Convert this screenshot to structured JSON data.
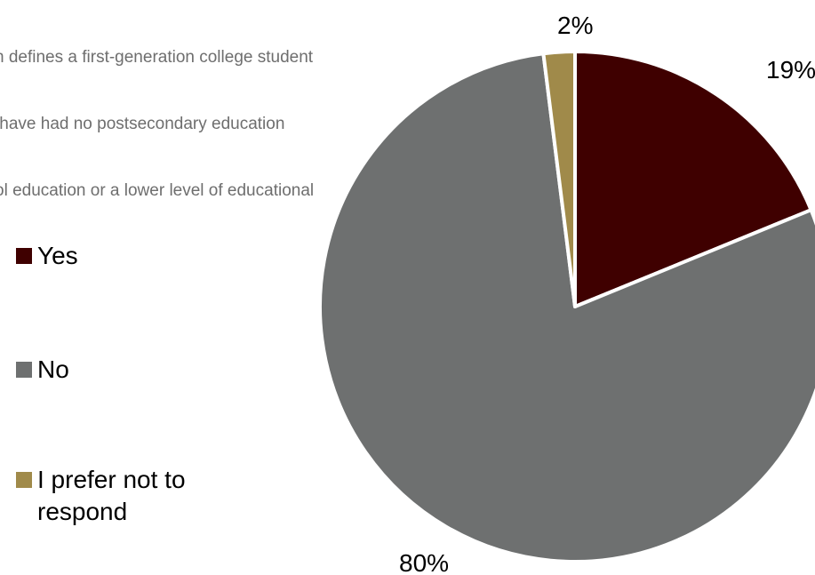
{
  "chart_data": {
    "type": "pie",
    "note_lines": [
      "n defines a first-generation college student",
      " have had no postsecondary education",
      "ol education or a lower level of educational"
    ],
    "categories": [
      "Yes",
      "No",
      "I prefer not to respond"
    ],
    "values": [
      19,
      80,
      2
    ],
    "data_labels": [
      "19%",
      "80%",
      "2%"
    ],
    "colors": [
      "#3f0000",
      "#6e7070",
      "#a08a4a"
    ],
    "legend_position": "left",
    "start_angle_deg": 0,
    "direction": "clockwise"
  }
}
